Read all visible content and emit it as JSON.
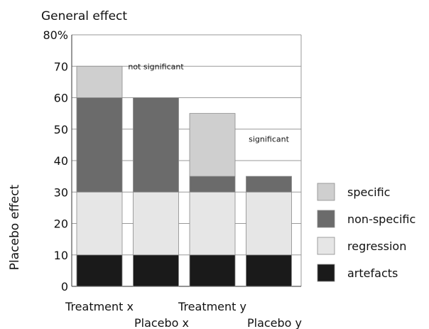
{
  "chart_data": {
    "type": "bar",
    "stacked": true,
    "title": "General effect",
    "ylabel": "Placebo effect",
    "ylim": [
      0,
      80
    ],
    "yticks": [
      "0",
      "10",
      "20",
      "30",
      "40",
      "50",
      "60",
      "70",
      "80%"
    ],
    "categories": [
      "Treatment x",
      "Placebo x",
      "Treatment y",
      "Placebo y"
    ],
    "series": [
      {
        "name": "artefacts",
        "color": "#1a1a1a",
        "values": [
          10,
          10,
          10,
          10
        ]
      },
      {
        "name": "regression",
        "color": "#e6e6e6",
        "values": [
          20,
          20,
          20,
          20
        ]
      },
      {
        "name": "non-specific",
        "color": "#6b6b6b",
        "values": [
          30,
          30,
          5,
          5
        ]
      },
      {
        "name": "specific",
        "color": "#cfcfcf",
        "values": [
          10,
          0,
          20,
          0
        ]
      }
    ],
    "legend_order": [
      "specific",
      "non-specific",
      "regression",
      "artefacts"
    ],
    "legend_position": "right",
    "annotations": [
      {
        "text": "not significant",
        "category": "Placebo x",
        "y": 69
      },
      {
        "text": "significant",
        "category": "Placebo y",
        "y": 46
      }
    ],
    "grid": true
  }
}
